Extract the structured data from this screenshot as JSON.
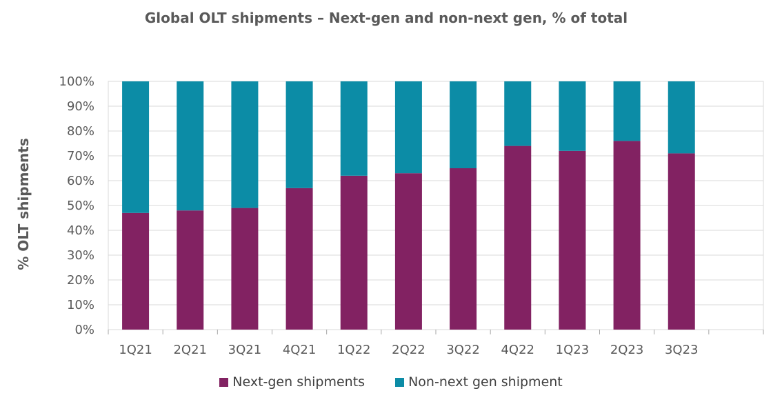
{
  "chart_data": {
    "type": "bar",
    "stacked": true,
    "title": "Global OLT shipments – Next-gen and non-next gen, % of total",
    "ylabel": "% OLT shipments",
    "xlabel": "",
    "categories": [
      "1Q21",
      "2Q21",
      "3Q21",
      "4Q21",
      "1Q22",
      "2Q22",
      "3Q22",
      "4Q22",
      "1Q23",
      "2Q23",
      "3Q23"
    ],
    "extra_empty_slots": 1,
    "ylim": [
      0,
      100
    ],
    "yticks": [
      0,
      10,
      20,
      30,
      40,
      50,
      60,
      70,
      80,
      90,
      100
    ],
    "ytick_format": "%",
    "grid": true,
    "legend_position": "bottom",
    "series": [
      {
        "name": "Next-gen shipments",
        "color": "#822262",
        "values": [
          47,
          48,
          49,
          57,
          62,
          63,
          65,
          74,
          72,
          76,
          71
        ]
      },
      {
        "name": "Non-next gen shipment",
        "color": "#0C8CA6",
        "values": [
          53,
          52,
          51,
          43,
          38,
          37,
          35,
          26,
          28,
          24,
          29
        ]
      }
    ]
  }
}
